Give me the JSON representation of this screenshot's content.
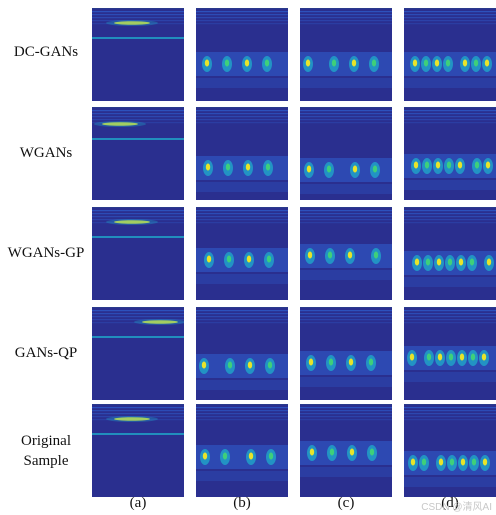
{
  "rows": [
    {
      "label": "DC-GANs"
    },
    {
      "label": "WGANs"
    },
    {
      "label": "WGANs-GP"
    },
    {
      "label": "GANs-QP"
    },
    {
      "label": "Original\nSample"
    }
  ],
  "columns": [
    {
      "label": "(a)"
    },
    {
      "label": "(b)"
    },
    {
      "label": "(c)"
    },
    {
      "label": "(d)"
    }
  ],
  "watermark": "CSDN @清风AI",
  "colors": {
    "background": "#2a2f8f",
    "band": "#2f5fd0",
    "mid": "#1fa6c8",
    "highlight": "#e8e42a",
    "green": "#3fcf7a"
  }
}
